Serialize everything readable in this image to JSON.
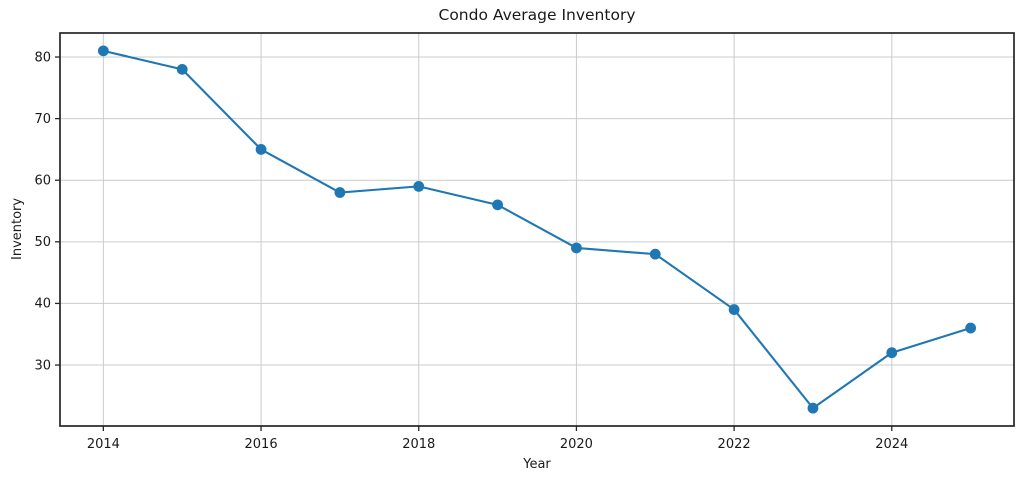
{
  "figure": {
    "title": "Condo Average Inventory",
    "xlabel": "Year",
    "ylabel": "Inventory"
  },
  "chart_data": {
    "type": "line",
    "title": "Condo Average Inventory",
    "xlabel": "Year",
    "ylabel": "Inventory",
    "x": [
      2014,
      2015,
      2016,
      2017,
      2018,
      2019,
      2020,
      2021,
      2022,
      2023,
      2024,
      2025
    ],
    "values": [
      81,
      78,
      65,
      58,
      59,
      56,
      49,
      48,
      39,
      23,
      32,
      36
    ],
    "xticks": [
      2014,
      2016,
      2018,
      2020,
      2022,
      2024
    ],
    "yticks": [
      30,
      40,
      50,
      60,
      70,
      80
    ],
    "xlim": [
      2013.45,
      2025.55
    ],
    "ylim": [
      20.1,
      83.9
    ],
    "grid": true,
    "legend": "none",
    "colors": {
      "line": "#1f77b4",
      "marker": "#1f77b4",
      "grid": "#cbcbcb",
      "spine": "#262626",
      "text": "#1a1a1a",
      "background": "#ffffff"
    }
  }
}
